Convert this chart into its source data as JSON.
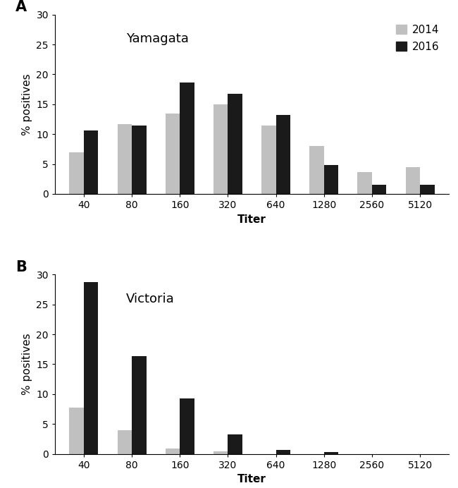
{
  "categories": [
    "40",
    "80",
    "160",
    "320",
    "640",
    "1280",
    "2560",
    "5120"
  ],
  "yamagata_2014": [
    7.0,
    11.7,
    13.5,
    15.0,
    11.5,
    8.0,
    3.7,
    4.5
  ],
  "yamagata_2016": [
    10.6,
    11.4,
    18.7,
    16.8,
    13.2,
    4.8,
    1.5,
    1.5
  ],
  "victoria_2014": [
    7.7,
    4.0,
    0.9,
    0.4,
    0.0,
    0.0,
    0.0,
    0.0
  ],
  "victoria_2016": [
    28.7,
    16.4,
    9.3,
    3.2,
    0.7,
    0.35,
    0.0,
    0.0
  ],
  "color_2014": "#c0c0c0",
  "color_2016": "#1a1a1a",
  "ylabel": "% positives",
  "xlabel": "Titer",
  "ylim": [
    0,
    30
  ],
  "yticks": [
    0,
    5,
    10,
    15,
    20,
    25,
    30
  ],
  "label_A": "A",
  "label_B": "B",
  "title_A": "Yamagata",
  "title_B": "Victoria",
  "legend_2014": "2014",
  "legend_2016": "2016",
  "bar_width": 0.3,
  "title_fontsize": 13,
  "label_fontsize": 11,
  "tick_fontsize": 10,
  "legend_fontsize": 11,
  "panel_label_fontsize": 15
}
